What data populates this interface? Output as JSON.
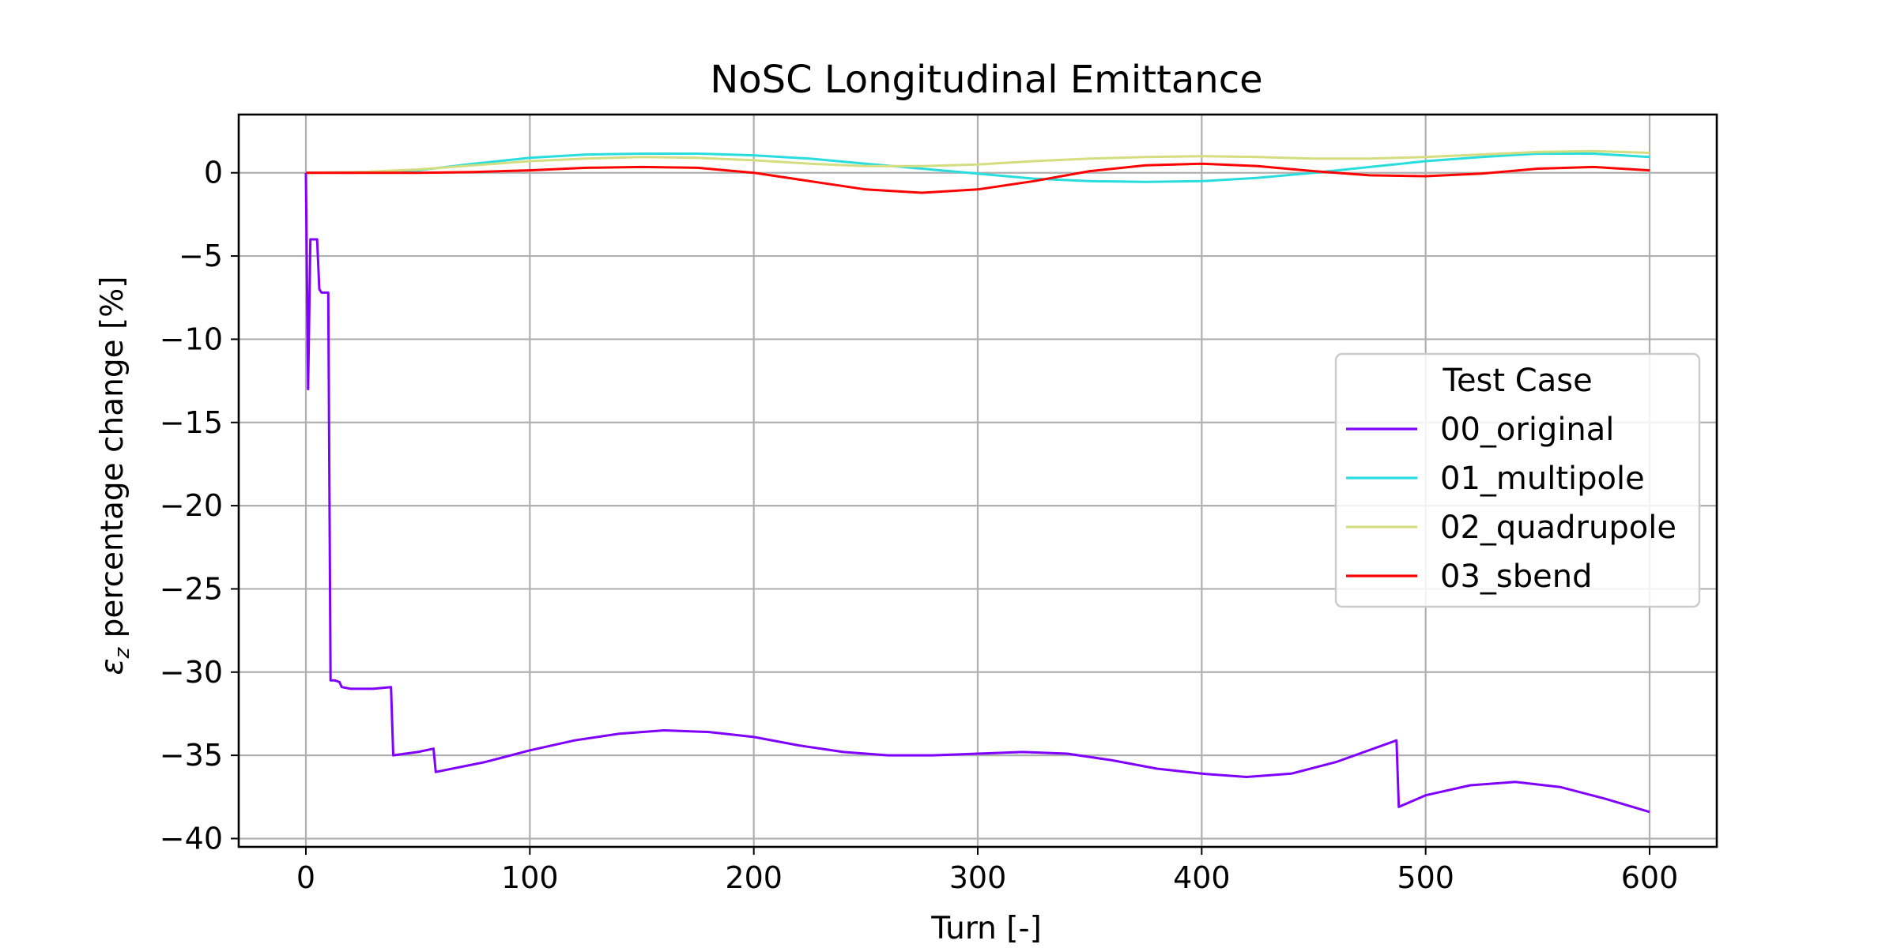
{
  "chart_data": {
    "type": "line",
    "title": "NoSC Longitudinal Emittance",
    "xlabel": "Turn [-]",
    "ylabel_symbol": "ε",
    "ylabel_subscript": "z",
    "ylabel_rest": " percentage change [%]",
    "xlim": [
      -30,
      630
    ],
    "ylim": [
      -40.5,
      3.5
    ],
    "xticks": [
      0,
      100,
      200,
      300,
      400,
      500,
      600
    ],
    "yticks": [
      0,
      -5,
      -10,
      -15,
      -20,
      -25,
      -30,
      -35,
      -40
    ],
    "grid": true,
    "legend": {
      "title": "Test Case",
      "placement": "center-right"
    },
    "series": [
      {
        "name": "00_original",
        "color": "#8000ff",
        "x": [
          0,
          1,
          2,
          3,
          5,
          6,
          7,
          8,
          10,
          11,
          13,
          15,
          16,
          20,
          30,
          38,
          39,
          50,
          57,
          58,
          80,
          100,
          120,
          140,
          160,
          180,
          200,
          220,
          240,
          260,
          280,
          300,
          320,
          340,
          360,
          380,
          400,
          420,
          440,
          460,
          487,
          488,
          500,
          520,
          540,
          560,
          580,
          600
        ],
        "y": [
          0,
          -13,
          -4,
          -4,
          -4,
          -7,
          -7.2,
          -7.2,
          -7.2,
          -30.5,
          -30.5,
          -30.6,
          -30.9,
          -31,
          -31,
          -30.9,
          -35,
          -34.8,
          -34.6,
          -36,
          -35.4,
          -34.7,
          -34.1,
          -33.7,
          -33.5,
          -33.6,
          -33.9,
          -34.4,
          -34.8,
          -35,
          -35,
          -34.9,
          -34.8,
          -34.9,
          -35.3,
          -35.8,
          -36.1,
          -36.3,
          -36.1,
          -35.4,
          -34.1,
          -38.1,
          -37.4,
          -36.8,
          -36.6,
          -36.9,
          -37.6,
          -38.4
        ]
      },
      {
        "name": "01_multipole",
        "color": "#2adddd",
        "x": [
          0,
          25,
          50,
          75,
          100,
          125,
          150,
          175,
          200,
          225,
          250,
          275,
          300,
          325,
          350,
          375,
          400,
          425,
          450,
          475,
          500,
          525,
          550,
          575,
          600
        ],
        "y": [
          0,
          0.05,
          0.15,
          0.55,
          0.9,
          1.1,
          1.15,
          1.15,
          1.05,
          0.85,
          0.55,
          0.25,
          -0.05,
          -0.35,
          -0.5,
          -0.55,
          -0.5,
          -0.3,
          0,
          0.35,
          0.7,
          0.95,
          1.15,
          1.15,
          0.95
        ]
      },
      {
        "name": "02_quadrupole",
        "color": "#d4dd80",
        "x": [
          0,
          25,
          50,
          75,
          100,
          125,
          150,
          175,
          200,
          225,
          250,
          275,
          300,
          325,
          350,
          375,
          400,
          425,
          450,
          475,
          500,
          525,
          550,
          575,
          600
        ],
        "y": [
          0,
          0.05,
          0.2,
          0.45,
          0.7,
          0.85,
          0.95,
          0.9,
          0.75,
          0.55,
          0.4,
          0.4,
          0.5,
          0.7,
          0.85,
          0.95,
          1.0,
          0.95,
          0.85,
          0.85,
          0.95,
          1.1,
          1.25,
          1.3,
          1.2
        ]
      },
      {
        "name": "03_sbend",
        "color": "#ff0000",
        "x": [
          0,
          25,
          50,
          75,
          100,
          125,
          150,
          175,
          200,
          225,
          250,
          275,
          300,
          325,
          350,
          375,
          400,
          425,
          450,
          475,
          500,
          525,
          550,
          575,
          600
        ],
        "y": [
          0,
          0,
          0,
          0.05,
          0.15,
          0.3,
          0.35,
          0.3,
          0,
          -0.5,
          -1.0,
          -1.2,
          -1.0,
          -0.5,
          0.1,
          0.45,
          0.55,
          0.4,
          0.1,
          -0.15,
          -0.2,
          -0.05,
          0.25,
          0.35,
          0.15
        ]
      }
    ]
  }
}
